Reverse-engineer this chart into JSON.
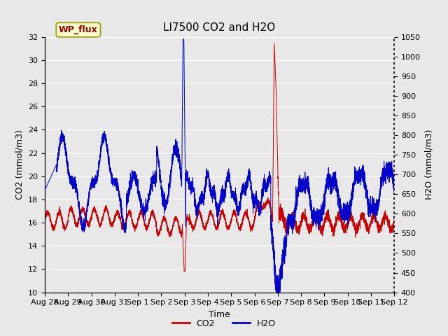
{
  "title": "LI7500 CO2 and H2O",
  "xlabel": "Time",
  "ylabel_left": "CO2 (mmol/m3)",
  "ylabel_right": "H2O (mmol/m3)",
  "ylim_left": [
    10,
    32
  ],
  "ylim_right": [
    400,
    1050
  ],
  "yticks_left": [
    10,
    12,
    14,
    16,
    18,
    20,
    22,
    24,
    26,
    28,
    30,
    32
  ],
  "yticks_right": [
    400,
    450,
    500,
    550,
    600,
    650,
    700,
    750,
    800,
    850,
    900,
    950,
    1000,
    1050
  ],
  "tick_labels": [
    "Aug 28",
    "Aug 29",
    "Aug 30",
    "Aug 31",
    "Sep 1",
    "Sep 2",
    "Sep 3",
    "Sep 4",
    "Sep 5",
    "Sep 6",
    "Sep 7",
    "Sep 8",
    "Sep 9",
    "Sep 10",
    "Sep 11",
    "Sep 12"
  ],
  "tick_positions": [
    0,
    1,
    2,
    3,
    4,
    5,
    6,
    7,
    8,
    9,
    10,
    11,
    12,
    13,
    14,
    15
  ],
  "co2_color": "#cc0000",
  "h2o_color": "#0000cc",
  "bg_color": "#e8e8e8",
  "plot_bg_color": "#e8e8e8",
  "grid_color": "#ffffff",
  "label_box_color": "#ffffcc",
  "label_box_edge": "#999900",
  "label_text": "WP_flux",
  "label_text_color": "#990000",
  "co2_label": "CO2",
  "h2o_label": "H2O",
  "title_fontsize": 11,
  "axis_label_fontsize": 9,
  "tick_fontsize": 8,
  "legend_fontsize": 9
}
